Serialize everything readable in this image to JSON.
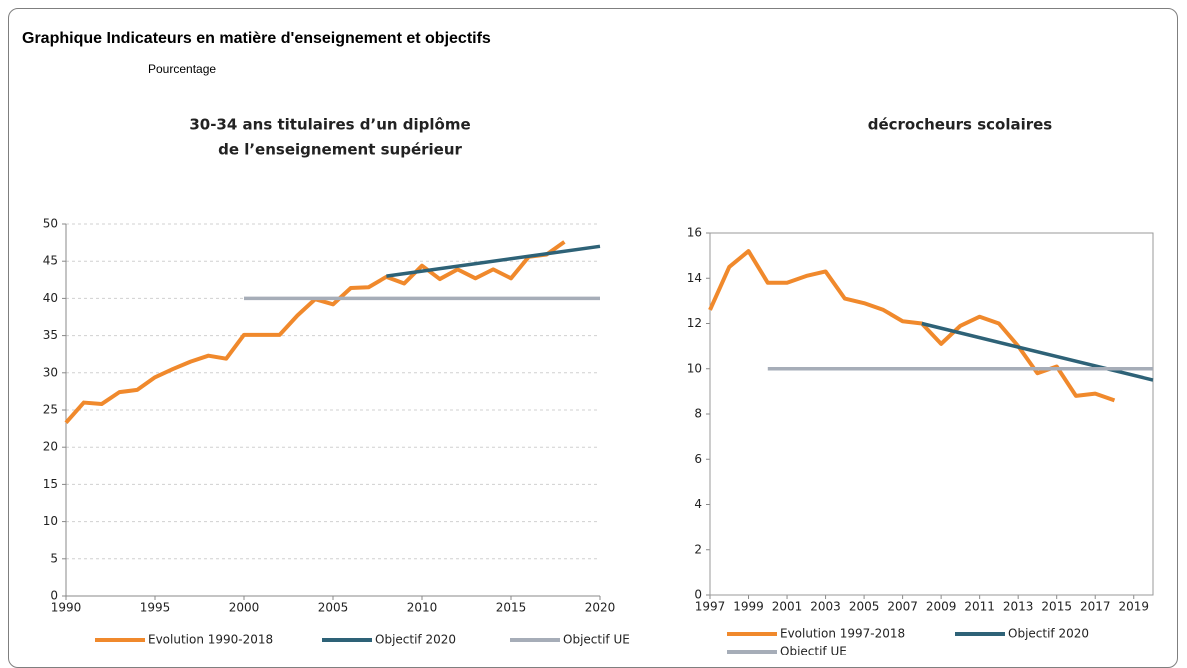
{
  "header": {
    "title": "Graphique Indicateurs en matière d'enseignement et objectifs",
    "subtitle": "Pourcentage"
  },
  "chart_data": [
    {
      "type": "line",
      "title_lines": [
        "30-34 ans titulaires d’un diplôme",
        "de l’enseignement supérieur"
      ],
      "xlim": [
        1990,
        2020
      ],
      "xticks": [
        1990,
        1995,
        2000,
        2005,
        2010,
        2015,
        2020
      ],
      "ylim": [
        0,
        50
      ],
      "yticks": [
        0,
        5,
        10,
        15,
        20,
        25,
        30,
        35,
        40,
        45,
        50
      ],
      "grid": true,
      "box": false,
      "series": [
        {
          "name": "Evolution 1990-2018",
          "color": "#f0892c",
          "x": [
            1990,
            1991,
            1992,
            1993,
            1994,
            1995,
            1996,
            1997,
            1998,
            1999,
            2000,
            2001,
            2002,
            2003,
            2004,
            2005,
            2006,
            2007,
            2008,
            2009,
            2010,
            2011,
            2012,
            2013,
            2014,
            2015,
            2016,
            2017,
            2018
          ],
          "values": [
            23.3,
            26,
            25.8,
            27.4,
            27.7,
            29.4,
            30.5,
            31.5,
            32.3,
            31.9,
            35.1,
            35.1,
            35.1,
            37.7,
            39.9,
            39.2,
            41.4,
            41.5,
            42.9,
            42.0,
            44.4,
            42.6,
            43.9,
            42.7,
            43.9,
            42.7,
            45.6,
            45.9,
            47.6
          ]
        },
        {
          "name": "Objectif 2020",
          "color": "#2e6277",
          "x": [
            2008,
            2020
          ],
          "values": [
            43,
            47
          ]
        },
        {
          "name": "Objectif UE",
          "color": "#a6adb8",
          "x": [
            2000,
            2020
          ],
          "values": [
            40,
            40
          ]
        }
      ]
    },
    {
      "type": "line",
      "title_lines": [
        "décrocheurs scolaires"
      ],
      "xlim": [
        1997,
        2020
      ],
      "xticks": [
        1997,
        1999,
        2001,
        2003,
        2005,
        2007,
        2009,
        2011,
        2013,
        2015,
        2017,
        2019
      ],
      "ylim": [
        0,
        16
      ],
      "yticks": [
        0,
        2,
        4,
        6,
        8,
        10,
        12,
        14,
        16
      ],
      "grid": false,
      "box": true,
      "series": [
        {
          "name": "Evolution 1997-2018",
          "color": "#f0892c",
          "x": [
            1997,
            1998,
            1999,
            2000,
            2001,
            2002,
            2003,
            2004,
            2005,
            2006,
            2007,
            2008,
            2009,
            2010,
            2011,
            2012,
            2013,
            2014,
            2015,
            2016,
            2017,
            2018
          ],
          "values": [
            12.6,
            14.5,
            15.2,
            13.8,
            13.8,
            14.1,
            14.3,
            13.1,
            12.9,
            12.6,
            12.1,
            12.0,
            11.1,
            11.9,
            12.3,
            12.0,
            11.0,
            9.8,
            10.1,
            8.8,
            8.9,
            8.6
          ]
        },
        {
          "name": "Objectif 2020",
          "color": "#2e6277",
          "x": [
            2008,
            2020
          ],
          "values": [
            12,
            9.5
          ]
        },
        {
          "name": "Objectif UE",
          "color": "#a6adb8",
          "x": [
            2000,
            2020
          ],
          "values": [
            10,
            10
          ]
        }
      ]
    }
  ]
}
